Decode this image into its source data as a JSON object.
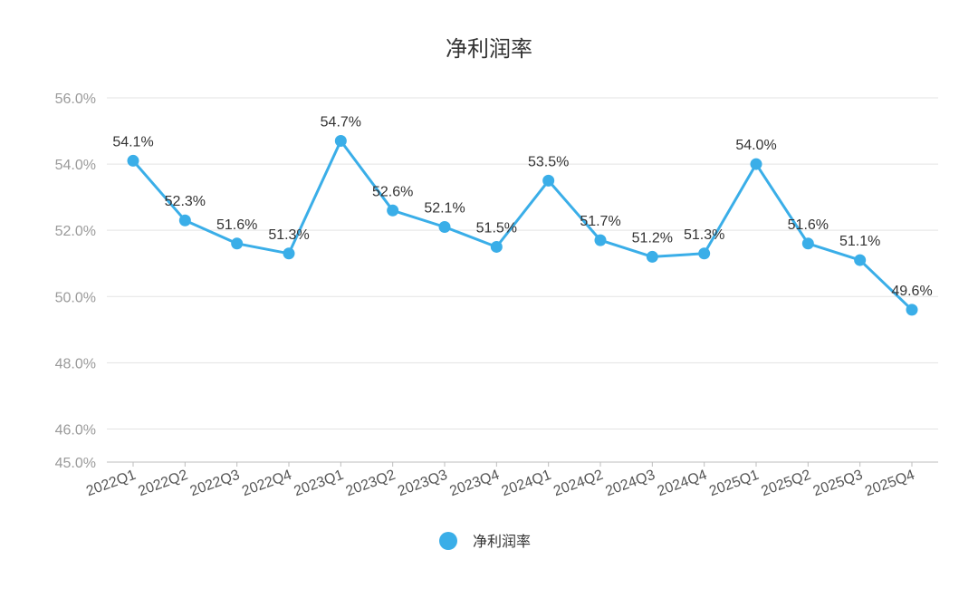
{
  "chart_data": {
    "type": "line",
    "title": "净利润率",
    "xlabel": "",
    "ylabel": "",
    "categories": [
      "2022Q1",
      "2022Q2",
      "2022Q3",
      "2022Q4",
      "2023Q1",
      "2023Q2",
      "2023Q3",
      "2023Q4",
      "2024Q1",
      "2024Q2",
      "2024Q3",
      "2024Q4",
      "2025Q1",
      "2025Q2",
      "2025Q3",
      "2025Q4"
    ],
    "series": [
      {
        "name": "净利润率",
        "values": [
          54.1,
          52.3,
          51.6,
          51.3,
          54.7,
          52.6,
          52.1,
          51.5,
          53.5,
          51.7,
          51.2,
          51.3,
          54.0,
          51.6,
          51.1,
          49.6
        ],
        "labels": [
          "54.1%",
          "52.3%",
          "51.6%",
          "51.3%",
          "54.7%",
          "52.6%",
          "52.1%",
          "51.5%",
          "53.5%",
          "51.7%",
          "51.2%",
          "51.3%",
          "54.0%",
          "51.6%",
          "51.1%",
          "49.6%"
        ],
        "color": "#3aaee8"
      }
    ],
    "ylim": [
      45,
      56
    ],
    "yticks": [
      45,
      46,
      48,
      50,
      52,
      54,
      56
    ],
    "ytick_labels": [
      "45.0%",
      "46.0%",
      "48.0%",
      "50.0%",
      "52.0%",
      "54.0%",
      "56.0%"
    ],
    "grid": true,
    "legend_position": "bottom-center",
    "grid_color": "#e3e3e3",
    "axis_color": "#bdbdbd"
  }
}
